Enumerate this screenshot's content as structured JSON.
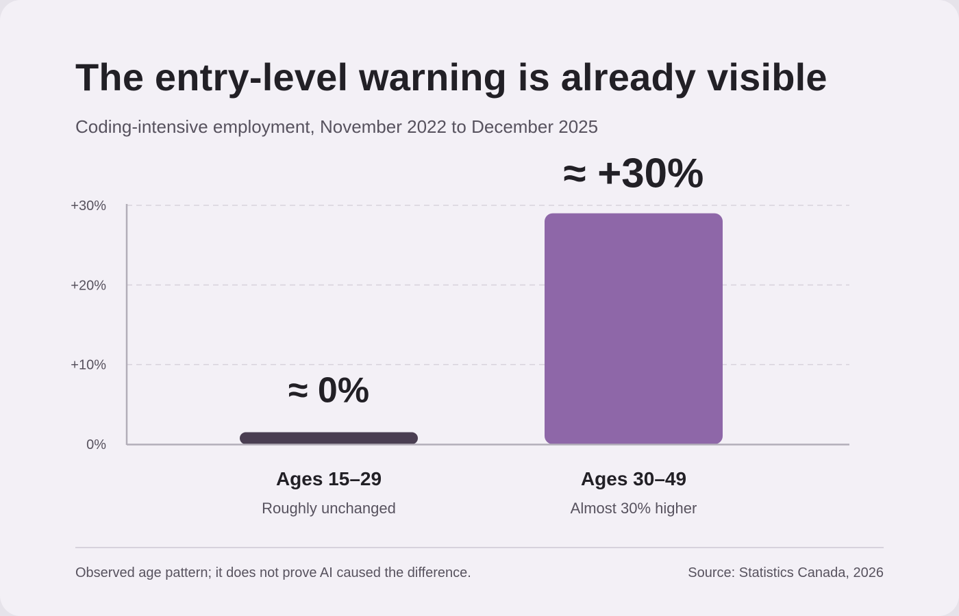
{
  "title": "The entry-level warning is already visible",
  "subtitle": "Coding-intensive employment, November 2022 to December 2025",
  "footnote": "Observed age pattern; it does not prove AI caused the difference.",
  "source": "Source: Statistics Canada, 2026",
  "colors": {
    "background": "#f3f0f6",
    "bar_young": "#4a3e52",
    "bar_older": "#8e67a8",
    "text_dark": "#222026",
    "text_muted": "#57525e",
    "grid": "#d7d2dc",
    "axis": "#b2adb8"
  },
  "chart_data": {
    "type": "bar",
    "categories": [
      "Ages 15–29",
      "Ages 30–49"
    ],
    "category_notes": [
      "Roughly unchanged",
      "Almost 30% higher"
    ],
    "values": [
      1.5,
      29
    ],
    "value_labels": [
      "≈ 0%",
      "≈ +30%"
    ],
    "yticks": [
      0,
      10,
      20,
      30
    ],
    "ytick_labels": [
      "0%",
      "+10%",
      "+20%",
      "+30%"
    ],
    "ylim": [
      0,
      30
    ],
    "grid": true,
    "legend": "none",
    "bar_colors": [
      "#4a3e52",
      "#8e67a8"
    ]
  }
}
